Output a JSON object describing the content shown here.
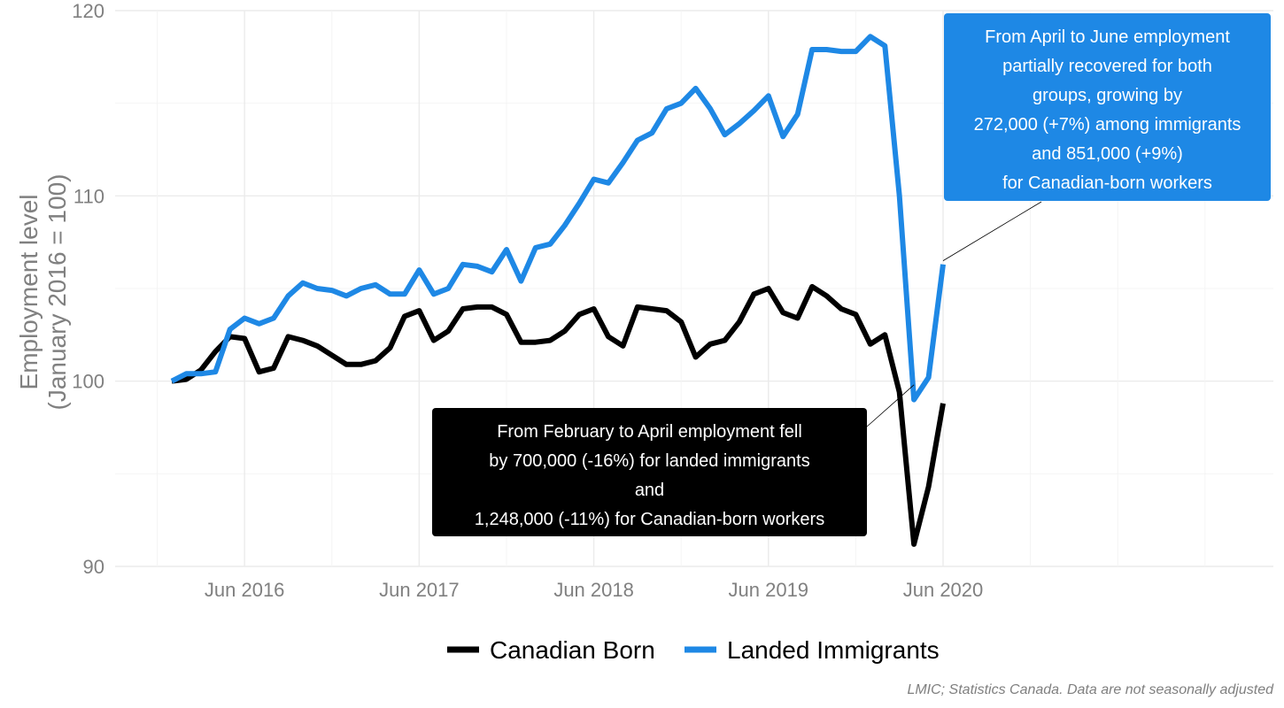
{
  "chart_data": {
    "type": "line",
    "ylabel_lines": [
      "Employment level",
      "(January 2016 = 100)"
    ],
    "xlabel": "",
    "ylim": [
      90,
      120
    ],
    "yticks": [
      90,
      100,
      110,
      120
    ],
    "x_tick_labels": [
      "Jun 2016",
      "Jun 2017",
      "Jun 2018",
      "Jun 2019",
      "Jun 2020"
    ],
    "x_tick_months": [
      5,
      17,
      29,
      41,
      53
    ],
    "grid": true,
    "legend_position": "bottom",
    "series": [
      {
        "name": "Canadian Born",
        "color": "#000000",
        "values": [
          100.0,
          100.1,
          100.6,
          101.6,
          102.4,
          102.3,
          100.5,
          100.7,
          102.4,
          102.2,
          101.9,
          101.4,
          100.9,
          100.9,
          101.1,
          101.8,
          103.5,
          103.8,
          102.2,
          102.7,
          103.9,
          104.0,
          104.0,
          103.6,
          102.1,
          102.1,
          102.2,
          102.7,
          103.6,
          103.9,
          102.4,
          101.9,
          104.0,
          103.9,
          103.8,
          103.2,
          101.3,
          102.0,
          102.2,
          103.2,
          104.7,
          105.0,
          103.7,
          103.4,
          105.1,
          104.6,
          103.9,
          103.6,
          102.0,
          102.5,
          99.4,
          91.2,
          94.3,
          98.8
        ]
      },
      {
        "name": "Landed Immigrants",
        "color": "#1E88E5",
        "values": [
          100.0,
          100.4,
          100.4,
          100.5,
          102.8,
          103.4,
          103.1,
          103.4,
          104.6,
          105.3,
          105.0,
          104.9,
          104.6,
          105.0,
          105.2,
          104.7,
          104.7,
          106.0,
          104.7,
          105.0,
          106.3,
          106.2,
          105.9,
          107.1,
          105.4,
          107.2,
          107.4,
          108.4,
          109.6,
          110.9,
          110.7,
          111.8,
          113.0,
          113.4,
          114.7,
          115.0,
          115.8,
          114.7,
          113.3,
          113.9,
          114.6,
          115.4,
          113.2,
          114.4,
          117.9,
          117.9,
          117.8,
          117.8,
          118.6,
          118.1,
          110.0,
          99.0,
          100.2,
          106.3
        ]
      }
    ],
    "annotations": [
      {
        "lines": [
          "From April to June employment",
          "partially recovered for both",
          "groups, growing by",
          "272,000 (+7%) among immigrants",
          "and 851,000 (+9%)",
          "for Canadian-born workers"
        ],
        "fill": "#1E88E5",
        "point_month": 53,
        "point_value": 106.5
      },
      {
        "lines": [
          "From February to April employment fell",
          "by 700,000 (-16%) for landed immigrants",
          "and",
          "1,248,000 (-11%)  for Canadian-born workers"
        ],
        "fill": "#000000",
        "point_month": 51,
        "point_value": 99.8
      }
    ]
  },
  "caption": "LMIC; Statistics Canada. Data are not seasonally adjusted"
}
